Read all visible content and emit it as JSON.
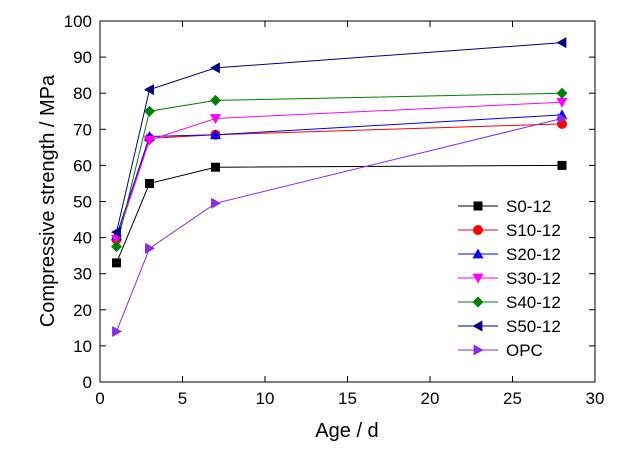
{
  "chart_data": {
    "type": "line",
    "title": "",
    "xlabel": "Age / d",
    "ylabel": "Compressive strength / MPa",
    "xlim": [
      0,
      30
    ],
    "ylim": [
      0,
      100
    ],
    "xticks": [
      0,
      5,
      10,
      15,
      20,
      25,
      30
    ],
    "yticks": [
      0,
      10,
      20,
      30,
      40,
      50,
      60,
      70,
      80,
      90,
      100
    ],
    "grid": false,
    "legend_position": "bottom-right",
    "x": [
      1,
      3,
      7,
      28
    ],
    "series": [
      {
        "name": "S0-12",
        "values": [
          33,
          55,
          59.5,
          60
        ],
        "color": "#000000",
        "marker": "square"
      },
      {
        "name": "S10-12",
        "values": [
          39.5,
          67.5,
          68.5,
          71.5
        ],
        "color": "#ff0000",
        "marker": "circle"
      },
      {
        "name": "S20-12",
        "values": [
          40.5,
          68,
          68.5,
          74
        ],
        "color": "#0000ff",
        "marker": "triangle-up"
      },
      {
        "name": "S30-12",
        "values": [
          39.5,
          67,
          73,
          77.5
        ],
        "color": "#ff00ff",
        "marker": "triangle-down"
      },
      {
        "name": "S40-12",
        "values": [
          37.5,
          75,
          78,
          80
        ],
        "color": "#008000",
        "marker": "diamond"
      },
      {
        "name": "S50-12",
        "values": [
          41.5,
          81,
          87,
          94
        ],
        "color": "#000080",
        "marker": "triangle-left"
      },
      {
        "name": "OPC",
        "values": [
          14,
          37,
          49.5,
          73
        ],
        "color": "#8a2be2",
        "marker": "triangle-right"
      }
    ]
  }
}
